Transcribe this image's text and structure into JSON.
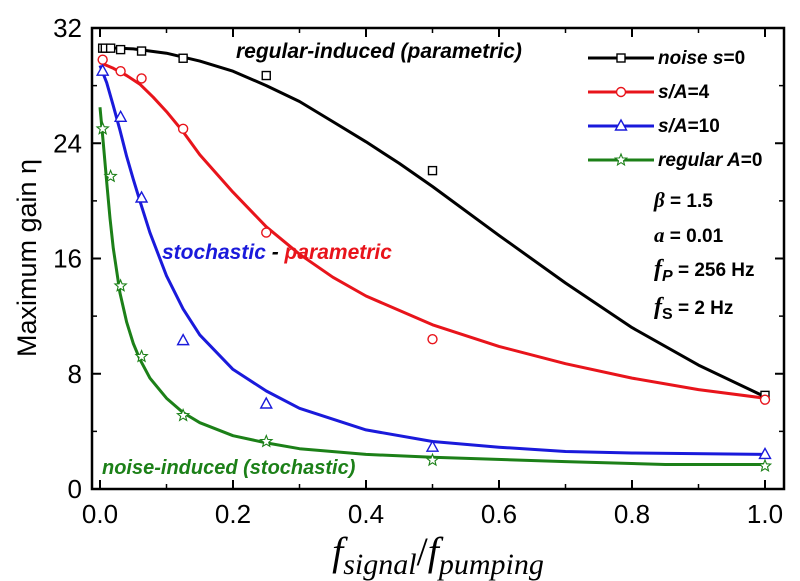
{
  "chart_data": {
    "type": "line",
    "xlim": [
      0,
      1.05
    ],
    "ylim": [
      0,
      32
    ],
    "x_ticks": [
      "0.0",
      "0.2",
      "0.4",
      "0.6",
      "0.8",
      "1.0"
    ],
    "y_ticks": [
      "0",
      "8",
      "16",
      "24",
      "32"
    ],
    "ylabel": "Maximum gain η",
    "xlabel": {
      "f1": "f",
      "sub1": "signal",
      "slash": "/",
      "f2": "f",
      "sub2": "pumping"
    },
    "series": [
      {
        "name": "noise s=0",
        "legend_pre": "noise ",
        "legend_var": "s",
        "legend_post": "=0",
        "color": "#000000",
        "marker": "square",
        "points": [
          [
            0.004,
            30.6
          ],
          [
            0.008,
            30.6
          ],
          [
            0.016,
            30.6
          ],
          [
            0.031,
            30.5
          ],
          [
            0.0625,
            30.4
          ],
          [
            0.125,
            29.9
          ],
          [
            0.25,
            28.7
          ],
          [
            0.5,
            22.1
          ],
          [
            1.0,
            6.5
          ]
        ],
        "curve": [
          [
            0.0,
            30.65
          ],
          [
            0.05,
            30.55
          ],
          [
            0.1,
            30.25
          ],
          [
            0.15,
            29.7
          ],
          [
            0.2,
            29.0
          ],
          [
            0.25,
            28.0
          ],
          [
            0.3,
            26.9
          ],
          [
            0.35,
            25.5
          ],
          [
            0.4,
            24.1
          ],
          [
            0.45,
            22.6
          ],
          [
            0.5,
            21.0
          ],
          [
            0.6,
            17.6
          ],
          [
            0.7,
            14.3
          ],
          [
            0.8,
            11.2
          ],
          [
            0.9,
            8.6
          ],
          [
            1.0,
            6.4
          ]
        ]
      },
      {
        "name": "s/A=4",
        "legend_pre": "",
        "legend_var": "s/A",
        "legend_post": "=4",
        "color": "#e8141b",
        "marker": "circle",
        "points": [
          [
            0.004,
            29.8
          ],
          [
            0.031,
            29.0
          ],
          [
            0.0625,
            28.5
          ],
          [
            0.125,
            25.0
          ],
          [
            0.25,
            17.8
          ],
          [
            0.5,
            10.4
          ],
          [
            1.0,
            6.2
          ]
        ],
        "curve": [
          [
            0.0,
            29.6
          ],
          [
            0.02,
            29.2
          ],
          [
            0.04,
            28.7
          ],
          [
            0.06,
            28.1
          ],
          [
            0.08,
            27.2
          ],
          [
            0.1,
            26.2
          ],
          [
            0.125,
            24.8
          ],
          [
            0.15,
            23.2
          ],
          [
            0.2,
            20.6
          ],
          [
            0.25,
            18.2
          ],
          [
            0.3,
            16.3
          ],
          [
            0.35,
            14.7
          ],
          [
            0.4,
            13.4
          ],
          [
            0.5,
            11.4
          ],
          [
            0.6,
            9.9
          ],
          [
            0.7,
            8.7
          ],
          [
            0.8,
            7.7
          ],
          [
            0.9,
            6.9
          ],
          [
            1.0,
            6.3
          ]
        ]
      },
      {
        "name": "s/A=10",
        "legend_pre": "",
        "legend_var": "s/A",
        "legend_post": "=10",
        "color": "#1a1adb",
        "marker": "triangle",
        "points": [
          [
            0.004,
            29.0
          ],
          [
            0.031,
            25.8
          ],
          [
            0.0625,
            20.2
          ],
          [
            0.125,
            10.3
          ],
          [
            0.25,
            5.9
          ],
          [
            0.5,
            2.9
          ],
          [
            1.0,
            2.4
          ]
        ],
        "curve": [
          [
            0.0,
            29.4
          ],
          [
            0.01,
            28.2
          ],
          [
            0.02,
            26.6
          ],
          [
            0.03,
            24.9
          ],
          [
            0.04,
            23.1
          ],
          [
            0.05,
            21.5
          ],
          [
            0.06,
            20.0
          ],
          [
            0.075,
            17.8
          ],
          [
            0.1,
            14.8
          ],
          [
            0.125,
            12.5
          ],
          [
            0.15,
            10.7
          ],
          [
            0.2,
            8.3
          ],
          [
            0.25,
            6.8
          ],
          [
            0.3,
            5.6
          ],
          [
            0.4,
            4.1
          ],
          [
            0.5,
            3.3
          ],
          [
            0.6,
            2.9
          ],
          [
            0.7,
            2.6
          ],
          [
            0.8,
            2.5
          ],
          [
            1.0,
            2.4
          ]
        ]
      },
      {
        "name": "regular A=0",
        "legend_pre": "regular ",
        "legend_var": "A",
        "legend_post": "=0",
        "color": "#1c8018",
        "marker": "star",
        "points": [
          [
            0.004,
            25.0
          ],
          [
            0.016,
            21.7
          ],
          [
            0.031,
            14.1
          ],
          [
            0.0625,
            9.2
          ],
          [
            0.125,
            5.1
          ],
          [
            0.25,
            3.3
          ],
          [
            0.5,
            2.0
          ],
          [
            1.0,
            1.6
          ]
        ],
        "curve": [
          [
            0.0,
            26.5
          ],
          [
            0.005,
            24.0
          ],
          [
            0.01,
            21.3
          ],
          [
            0.015,
            18.8
          ],
          [
            0.02,
            16.7
          ],
          [
            0.03,
            13.6
          ],
          [
            0.04,
            11.6
          ],
          [
            0.05,
            10.1
          ],
          [
            0.06,
            9.0
          ],
          [
            0.075,
            7.7
          ],
          [
            0.1,
            6.3
          ],
          [
            0.125,
            5.3
          ],
          [
            0.15,
            4.6
          ],
          [
            0.2,
            3.7
          ],
          [
            0.25,
            3.2
          ],
          [
            0.3,
            2.8
          ],
          [
            0.4,
            2.4
          ],
          [
            0.5,
            2.2
          ],
          [
            0.7,
            1.9
          ],
          [
            0.85,
            1.7
          ],
          [
            1.0,
            1.7
          ]
        ]
      }
    ],
    "legend_position": "top-right",
    "parameters": [
      {
        "sym": "β",
        "sub": "",
        "rest": " = 1.5"
      },
      {
        "sym": "a",
        "sub": "",
        "rest": " = 0.01"
      },
      {
        "sym": "f",
        "sub": "P",
        "rest": " = 256 Hz"
      },
      {
        "sym": "f",
        "sub": "S",
        "rest": " = 2 Hz"
      }
    ],
    "annotations": {
      "regular_induced": "regular-induced (parametric)",
      "stochastic": "stochastic",
      "dash": " - ",
      "parametric": "parametric",
      "noise_induced": "noise-induced (stochastic)"
    }
  }
}
